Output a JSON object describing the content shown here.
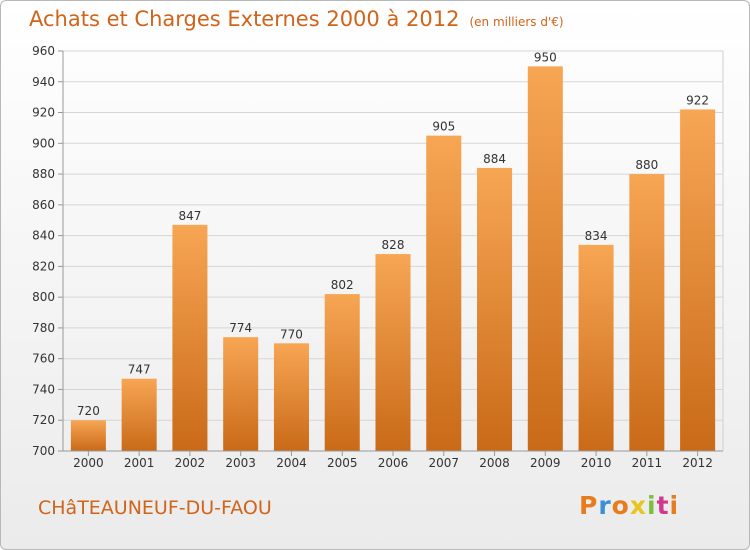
{
  "chart_data": {
    "type": "bar",
    "title": "Achats et Charges Externes 2000 à 2012",
    "unit_label": "(en milliers d'€)",
    "categories": [
      "2000",
      "2001",
      "2002",
      "2003",
      "2004",
      "2005",
      "2006",
      "2007",
      "2008",
      "2009",
      "2010",
      "2011",
      "2012"
    ],
    "values": [
      720,
      747,
      847,
      774,
      770,
      802,
      828,
      905,
      884,
      950,
      834,
      880,
      922
    ],
    "ylim": [
      700,
      960
    ],
    "yticks": [
      700,
      720,
      740,
      760,
      780,
      800,
      820,
      840,
      860,
      880,
      900,
      920,
      940,
      960
    ],
    "grid": true,
    "bar_color": "#f08a2c"
  },
  "footer": {
    "city": "CHâTEAUNEUF-DU-FAOU",
    "logo": [
      "P",
      "r",
      "o",
      "x",
      "i",
      "t",
      "i"
    ],
    "logo_colors": [
      "#e87b1e",
      "#3a8fd6",
      "#e87b1e",
      "#e8c51e",
      "#7fbf3f",
      "#d03a8c",
      "#e87b1e"
    ]
  }
}
